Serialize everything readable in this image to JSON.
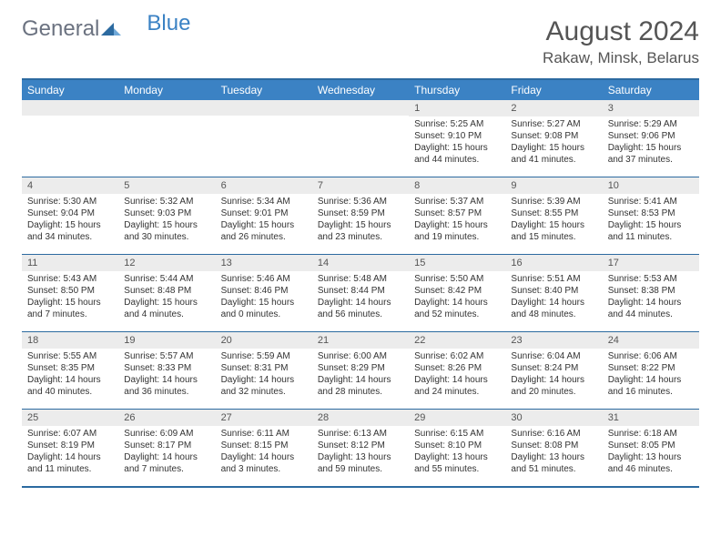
{
  "logo": {
    "general": "General",
    "blue": "Blue"
  },
  "title": "August 2024",
  "location": "Rakaw, Minsk, Belarus",
  "colors": {
    "header_bg": "#3b82c4",
    "border": "#2c6aa0",
    "daynum_bg": "#ececec",
    "text": "#333333",
    "logo_gray": "#6b7280",
    "logo_blue": "#3b82c4"
  },
  "day_names": [
    "Sunday",
    "Monday",
    "Tuesday",
    "Wednesday",
    "Thursday",
    "Friday",
    "Saturday"
  ],
  "weeks": [
    [
      null,
      null,
      null,
      null,
      {
        "d": "1",
        "sr": "Sunrise: 5:25 AM",
        "ss": "Sunset: 9:10 PM",
        "dl1": "Daylight: 15 hours",
        "dl2": "and 44 minutes."
      },
      {
        "d": "2",
        "sr": "Sunrise: 5:27 AM",
        "ss": "Sunset: 9:08 PM",
        "dl1": "Daylight: 15 hours",
        "dl2": "and 41 minutes."
      },
      {
        "d": "3",
        "sr": "Sunrise: 5:29 AM",
        "ss": "Sunset: 9:06 PM",
        "dl1": "Daylight: 15 hours",
        "dl2": "and 37 minutes."
      }
    ],
    [
      {
        "d": "4",
        "sr": "Sunrise: 5:30 AM",
        "ss": "Sunset: 9:04 PM",
        "dl1": "Daylight: 15 hours",
        "dl2": "and 34 minutes."
      },
      {
        "d": "5",
        "sr": "Sunrise: 5:32 AM",
        "ss": "Sunset: 9:03 PM",
        "dl1": "Daylight: 15 hours",
        "dl2": "and 30 minutes."
      },
      {
        "d": "6",
        "sr": "Sunrise: 5:34 AM",
        "ss": "Sunset: 9:01 PM",
        "dl1": "Daylight: 15 hours",
        "dl2": "and 26 minutes."
      },
      {
        "d": "7",
        "sr": "Sunrise: 5:36 AM",
        "ss": "Sunset: 8:59 PM",
        "dl1": "Daylight: 15 hours",
        "dl2": "and 23 minutes."
      },
      {
        "d": "8",
        "sr": "Sunrise: 5:37 AM",
        "ss": "Sunset: 8:57 PM",
        "dl1": "Daylight: 15 hours",
        "dl2": "and 19 minutes."
      },
      {
        "d": "9",
        "sr": "Sunrise: 5:39 AM",
        "ss": "Sunset: 8:55 PM",
        "dl1": "Daylight: 15 hours",
        "dl2": "and 15 minutes."
      },
      {
        "d": "10",
        "sr": "Sunrise: 5:41 AM",
        "ss": "Sunset: 8:53 PM",
        "dl1": "Daylight: 15 hours",
        "dl2": "and 11 minutes."
      }
    ],
    [
      {
        "d": "11",
        "sr": "Sunrise: 5:43 AM",
        "ss": "Sunset: 8:50 PM",
        "dl1": "Daylight: 15 hours",
        "dl2": "and 7 minutes."
      },
      {
        "d": "12",
        "sr": "Sunrise: 5:44 AM",
        "ss": "Sunset: 8:48 PM",
        "dl1": "Daylight: 15 hours",
        "dl2": "and 4 minutes."
      },
      {
        "d": "13",
        "sr": "Sunrise: 5:46 AM",
        "ss": "Sunset: 8:46 PM",
        "dl1": "Daylight: 15 hours",
        "dl2": "and 0 minutes."
      },
      {
        "d": "14",
        "sr": "Sunrise: 5:48 AM",
        "ss": "Sunset: 8:44 PM",
        "dl1": "Daylight: 14 hours",
        "dl2": "and 56 minutes."
      },
      {
        "d": "15",
        "sr": "Sunrise: 5:50 AM",
        "ss": "Sunset: 8:42 PM",
        "dl1": "Daylight: 14 hours",
        "dl2": "and 52 minutes."
      },
      {
        "d": "16",
        "sr": "Sunrise: 5:51 AM",
        "ss": "Sunset: 8:40 PM",
        "dl1": "Daylight: 14 hours",
        "dl2": "and 48 minutes."
      },
      {
        "d": "17",
        "sr": "Sunrise: 5:53 AM",
        "ss": "Sunset: 8:38 PM",
        "dl1": "Daylight: 14 hours",
        "dl2": "and 44 minutes."
      }
    ],
    [
      {
        "d": "18",
        "sr": "Sunrise: 5:55 AM",
        "ss": "Sunset: 8:35 PM",
        "dl1": "Daylight: 14 hours",
        "dl2": "and 40 minutes."
      },
      {
        "d": "19",
        "sr": "Sunrise: 5:57 AM",
        "ss": "Sunset: 8:33 PM",
        "dl1": "Daylight: 14 hours",
        "dl2": "and 36 minutes."
      },
      {
        "d": "20",
        "sr": "Sunrise: 5:59 AM",
        "ss": "Sunset: 8:31 PM",
        "dl1": "Daylight: 14 hours",
        "dl2": "and 32 minutes."
      },
      {
        "d": "21",
        "sr": "Sunrise: 6:00 AM",
        "ss": "Sunset: 8:29 PM",
        "dl1": "Daylight: 14 hours",
        "dl2": "and 28 minutes."
      },
      {
        "d": "22",
        "sr": "Sunrise: 6:02 AM",
        "ss": "Sunset: 8:26 PM",
        "dl1": "Daylight: 14 hours",
        "dl2": "and 24 minutes."
      },
      {
        "d": "23",
        "sr": "Sunrise: 6:04 AM",
        "ss": "Sunset: 8:24 PM",
        "dl1": "Daylight: 14 hours",
        "dl2": "and 20 minutes."
      },
      {
        "d": "24",
        "sr": "Sunrise: 6:06 AM",
        "ss": "Sunset: 8:22 PM",
        "dl1": "Daylight: 14 hours",
        "dl2": "and 16 minutes."
      }
    ],
    [
      {
        "d": "25",
        "sr": "Sunrise: 6:07 AM",
        "ss": "Sunset: 8:19 PM",
        "dl1": "Daylight: 14 hours",
        "dl2": "and 11 minutes."
      },
      {
        "d": "26",
        "sr": "Sunrise: 6:09 AM",
        "ss": "Sunset: 8:17 PM",
        "dl1": "Daylight: 14 hours",
        "dl2": "and 7 minutes."
      },
      {
        "d": "27",
        "sr": "Sunrise: 6:11 AM",
        "ss": "Sunset: 8:15 PM",
        "dl1": "Daylight: 14 hours",
        "dl2": "and 3 minutes."
      },
      {
        "d": "28",
        "sr": "Sunrise: 6:13 AM",
        "ss": "Sunset: 8:12 PM",
        "dl1": "Daylight: 13 hours",
        "dl2": "and 59 minutes."
      },
      {
        "d": "29",
        "sr": "Sunrise: 6:15 AM",
        "ss": "Sunset: 8:10 PM",
        "dl1": "Daylight: 13 hours",
        "dl2": "and 55 minutes."
      },
      {
        "d": "30",
        "sr": "Sunrise: 6:16 AM",
        "ss": "Sunset: 8:08 PM",
        "dl1": "Daylight: 13 hours",
        "dl2": "and 51 minutes."
      },
      {
        "d": "31",
        "sr": "Sunrise: 6:18 AM",
        "ss": "Sunset: 8:05 PM",
        "dl1": "Daylight: 13 hours",
        "dl2": "and 46 minutes."
      }
    ]
  ]
}
